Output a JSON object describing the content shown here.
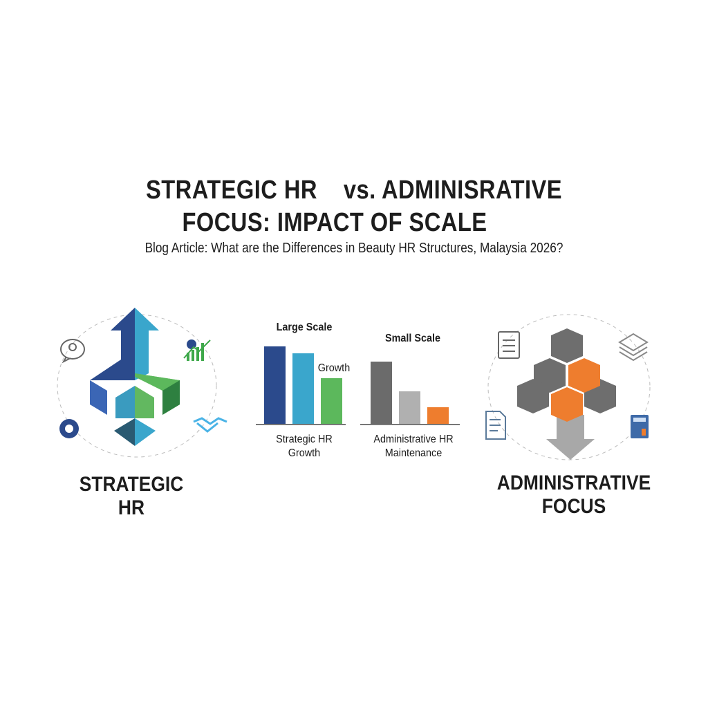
{
  "title": {
    "line1": "STRATEGIC HR    vs. ADMINISRATIVE",
    "line2": "FOCUS: IMPACT OF SCALE"
  },
  "subtitle": "Blog Article: What are the Differences in Beauty HR Structures, Malaysia 2026?",
  "left_panel": {
    "label_line1": "STRATEGIC",
    "label_line2": "HR",
    "icons": [
      "lightbulb-speech-icon",
      "gear-growth-chart-icon",
      "gear-icon",
      "handshake-icon",
      "upward-arrow-blocks-icon"
    ]
  },
  "right_panel": {
    "label_line1": "ADMINISTRATIVE",
    "label_line2": "FOCUS",
    "icons": [
      "clipboard-checklist-icon",
      "paper-stack-icon",
      "document-icon",
      "calculator-icon",
      "downward-arrow-cubes-icon"
    ]
  },
  "chart_data": [
    {
      "type": "bar",
      "title": "Large Scale",
      "annotation": "Growth",
      "xlabel": "Strategic HR Growth",
      "xlabel_line1": "Strategic HR",
      "xlabel_line2": "Growth",
      "values": [
        100,
        91,
        59
      ],
      "colors": [
        "#2b4a8c",
        "#3aa6cc",
        "#5cb85c"
      ],
      "ylim": [
        0,
        100
      ],
      "grid": false
    },
    {
      "type": "bar",
      "title": "Small Scale",
      "xlabel": "Administrative HR Maintenance",
      "xlabel_line1": "Administrative HR",
      "xlabel_line2": "Maintenance",
      "values": [
        80,
        42,
        21
      ],
      "colors": [
        "#6b6b6b",
        "#b0b0b0",
        "#ee7d2e"
      ],
      "ylim": [
        0,
        100
      ],
      "grid": false
    }
  ]
}
